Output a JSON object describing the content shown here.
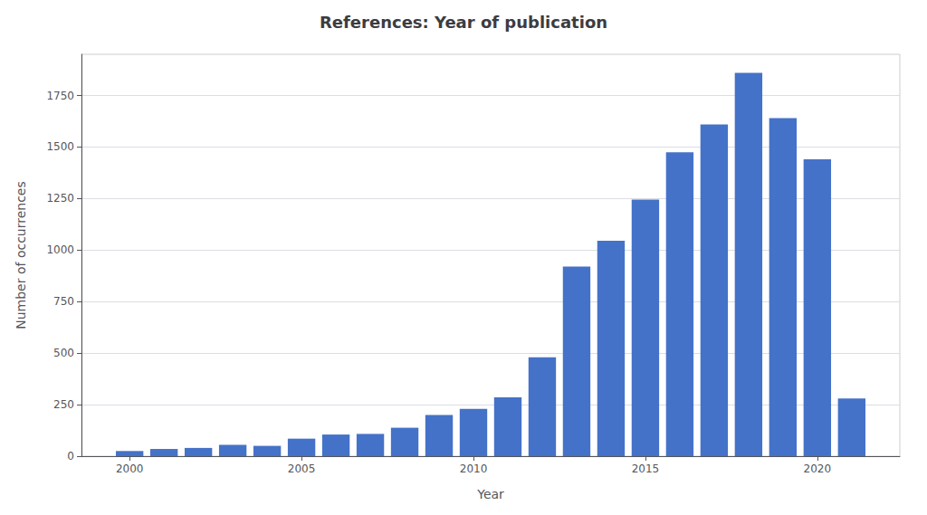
{
  "chart_data": {
    "type": "bar",
    "title": "References: Year of publication",
    "xlabel": "Year",
    "ylabel": "Number of occurrences",
    "x": [
      2000,
      2001,
      2002,
      2003,
      2004,
      2005,
      2006,
      2007,
      2008,
      2009,
      2010,
      2011,
      2012,
      2013,
      2014,
      2015,
      2016,
      2017,
      2018,
      2019,
      2020,
      2021
    ],
    "values": [
      25,
      35,
      40,
      55,
      50,
      85,
      105,
      108,
      138,
      200,
      230,
      285,
      480,
      920,
      1045,
      1245,
      1475,
      1610,
      1860,
      1640,
      1440,
      280
    ],
    "color": "#4472c8",
    "xlim": [
      1998.6,
      2022.4
    ],
    "xticks": [
      2000,
      2005,
      2010,
      2015,
      2020
    ],
    "ylim": [
      0,
      1950
    ],
    "yticks": [
      0,
      250,
      500,
      750,
      1000,
      1250,
      1500,
      1750
    ],
    "grid": true
  }
}
